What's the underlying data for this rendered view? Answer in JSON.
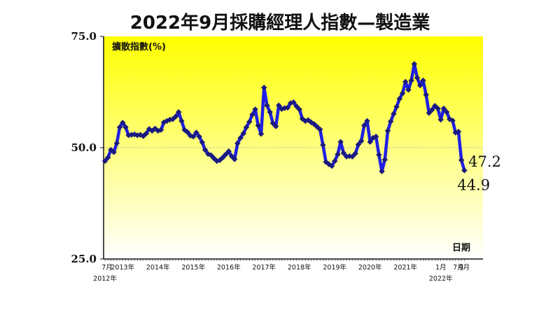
{
  "chart_data": {
    "type": "line",
    "title": "2022年9月採購經理人指數—製造業",
    "ylabel": "擴散指數(%)",
    "xlabel": "日期",
    "ylim": [
      25.0,
      75.0
    ],
    "yticks": [
      "25.0",
      "50.0",
      "75.0"
    ],
    "reference_line": 50.0,
    "grid": false,
    "colors": {
      "line": "#1f1fe6",
      "marker": "#1a1a80",
      "bg_top": "#ffff00",
      "bg_bottom": "#ffffff"
    },
    "x_labels": [
      {
        "i": 0,
        "lines": [
          "7月",
          "2012年"
        ]
      },
      {
        "i": 6,
        "lines": [
          "2013年"
        ]
      },
      {
        "i": 18,
        "lines": [
          "2014年"
        ]
      },
      {
        "i": 30,
        "lines": [
          "2015年"
        ]
      },
      {
        "i": 42,
        "lines": [
          "2016年"
        ]
      },
      {
        "i": 54,
        "lines": [
          "2017年"
        ]
      },
      {
        "i": 66,
        "lines": [
          "2018年"
        ]
      },
      {
        "i": 78,
        "lines": [
          "2019年"
        ]
      },
      {
        "i": 90,
        "lines": [
          "2020年"
        ]
      },
      {
        "i": 102,
        "lines": [
          "2021年"
        ]
      },
      {
        "i": 114,
        "lines": [
          "1月",
          "2022年"
        ]
      },
      {
        "i": 120,
        "lines": [
          "7月"
        ]
      },
      {
        "i": 122,
        "lines": [
          "9月"
        ]
      }
    ],
    "end_labels": [
      {
        "i": 121,
        "text": "47.2"
      },
      {
        "i": 122,
        "text": "44.9"
      }
    ],
    "series": [
      {
        "values": [
          47.0,
          47.8,
          49.5,
          49.0,
          51.0,
          54.6,
          55.6,
          54.6,
          52.8,
          52.9,
          53.0,
          52.8,
          52.9,
          52.6,
          53.2,
          54.2,
          53.8,
          54.3,
          53.8,
          54.0,
          55.7,
          56.0,
          56.3,
          56.4,
          57.0,
          58.0,
          56.0,
          54.0,
          53.5,
          52.7,
          52.5,
          53.4,
          52.5,
          51.2,
          49.5,
          48.6,
          48.3,
          47.6,
          47.0,
          47.2,
          47.8,
          48.5,
          49.2,
          48.1,
          47.4,
          51.0,
          52.2,
          53.2,
          54.6,
          55.8,
          57.4,
          58.6,
          55.0,
          53.1,
          63.5,
          59.5,
          58.0,
          55.5,
          54.8,
          59.5,
          58.7,
          58.9,
          59.0,
          60.0,
          60.2,
          59.3,
          58.6,
          56.5,
          56.0,
          56.2,
          55.7,
          55.3,
          54.7,
          54.1,
          50.6,
          46.8,
          46.3,
          45.9,
          47.0,
          48.5,
          51.3,
          48.8,
          48.0,
          48.1,
          48.0,
          48.7,
          50.7,
          51.5,
          55.0,
          56.0,
          51.3,
          52.2,
          52.5,
          48.4,
          44.7,
          47.3,
          53.8,
          55.9,
          57.6,
          59.2,
          61.0,
          62.2,
          64.8,
          63.0,
          65.1,
          68.8,
          65.7,
          64.0,
          65.1,
          61.9,
          57.8,
          58.5,
          59.4,
          58.8,
          56.3,
          58.8,
          58.0,
          56.4,
          56.1,
          53.4,
          53.6,
          47.2,
          44.9
        ]
      }
    ]
  }
}
